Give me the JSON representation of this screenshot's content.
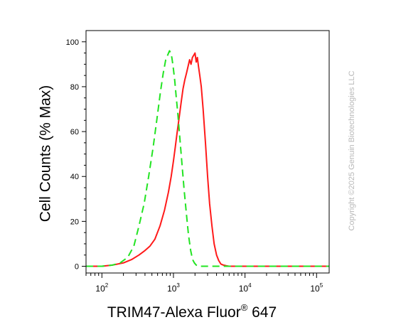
{
  "chart_data": {
    "type": "line",
    "xlabel_main": "TRIM47-Alexa Fluor",
    "xlabel_sup": "®",
    "xlabel_suffix": " 647",
    "ylabel": "Cell Counts (% Max)",
    "x_scale": "log",
    "xlim": [
      60,
      150000
    ],
    "ylim": [
      -3,
      105
    ],
    "x_ticks": [
      {
        "value": 100,
        "base": "10",
        "exp": "2"
      },
      {
        "value": 1000,
        "base": "10",
        "exp": "3"
      },
      {
        "value": 10000,
        "base": "10",
        "exp": "4"
      },
      {
        "value": 100000,
        "base": "10",
        "exp": "5"
      }
    ],
    "y_ticks": [
      0,
      20,
      40,
      60,
      80,
      100
    ],
    "series": [
      {
        "color": "#ff1a1a",
        "style": "solid",
        "x": [
          60,
          100,
          140,
          200,
          260,
          330,
          400,
          470,
          550,
          650,
          750,
          850,
          930,
          1000,
          1060,
          1120,
          1200,
          1280,
          1360,
          1440,
          1520,
          1600,
          1680,
          1760,
          1840,
          1920,
          2000,
          2080,
          2160,
          2240,
          2330,
          2450,
          2600,
          2800,
          3000,
          3200,
          3450,
          3700,
          4000,
          4300,
          4600,
          5000,
          5500,
          6000,
          7000,
          8000,
          10000,
          150000
        ],
        "y": [
          0,
          0,
          0.5,
          1.5,
          3,
          5,
          7,
          9,
          12,
          18,
          25,
          33,
          40,
          47,
          53,
          59,
          66,
          73,
          79,
          83,
          86,
          89,
          92,
          90,
          93,
          94,
          95,
          91,
          93,
          89,
          85,
          80,
          70,
          55,
          40,
          28,
          18,
          10,
          5,
          2.5,
          1,
          0.5,
          0.2,
          0,
          0,
          0,
          0,
          0
        ]
      },
      {
        "color": "#22e422",
        "style": "dashed",
        "x": [
          60,
          100,
          140,
          180,
          230,
          280,
          330,
          390,
          450,
          520,
          590,
          660,
          720,
          780,
          830,
          880,
          920,
          950,
          990,
          1040,
          1090,
          1150,
          1230,
          1320,
          1410,
          1520,
          1620,
          1740,
          1850,
          1960,
          2080,
          2250,
          2500,
          3000,
          4000,
          150000
        ],
        "y": [
          0,
          0,
          0.5,
          1.5,
          4,
          9,
          18,
          28,
          40,
          53,
          66,
          78,
          86,
          92,
          94,
          96,
          95,
          93,
          89,
          83,
          76,
          68,
          57,
          45,
          34,
          23,
          14,
          7,
          3,
          1.5,
          0.5,
          0,
          0,
          0,
          0,
          0
        ]
      }
    ]
  },
  "watermark": "Copyright ©2025 Genuin Biotechnologies LLC"
}
